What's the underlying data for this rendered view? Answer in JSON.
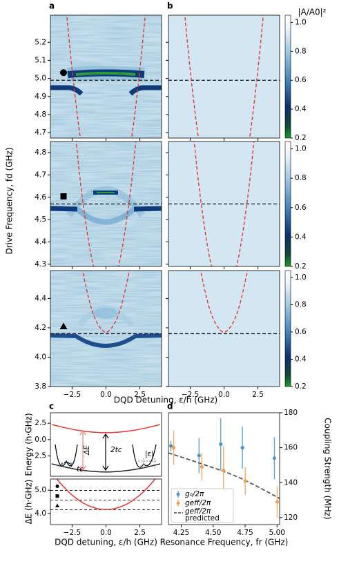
{
  "chart_data": [
    {
      "type": "heatmap",
      "panels": [
        "a",
        "b"
      ],
      "xlabel": "DQD Detuning, ε/h (GHz)",
      "ylabel": "Drive Frequency, fd (GHz)",
      "xlim": [
        -4.1,
        4.1
      ],
      "xticks": [
        {
          "value": -2.5,
          "label": "−2.5"
        },
        {
          "value": 0,
          "label": "0.0"
        },
        2.5
      ],
      "colorbar": {
        "label": "|A/A0|²",
        "lim": [
          0.2,
          1.05
        ],
        "ticks": [
          0.2,
          0.4,
          0.6,
          0.8,
          {
            "value": 1,
            "label": "1.0"
          }
        ]
      },
      "rows": [
        {
          "ylim": [
            4.67,
            5.35
          ],
          "yticks": [
            4.7,
            4.8,
            4.9,
            {
              "value": 5,
              "label": "5.0"
            },
            5.1,
            5.2
          ],
          "reference_line": 4.99
        },
        {
          "ylim": [
            4.29,
            4.85
          ],
          "yticks": [
            4.3,
            4.4,
            4.5,
            4.6,
            4.7,
            4.8
          ],
          "reference_line": 4.57
        },
        {
          "ylim": [
            3.8,
            4.59
          ],
          "yticks": [
            3.8,
            {
              "value": 4,
              "label": "4.0"
            },
            4.2,
            4.4
          ],
          "reference_line": 4.16
        }
      ],
      "model_curve": {
        "x": [
          -3,
          -2.5,
          -2,
          -1.5,
          -1,
          -0.5,
          0,
          0.5,
          1,
          1.5,
          2,
          2.5,
          3
        ],
        "y": [
          5.43,
          5.05,
          4.73,
          4.49,
          4.31,
          4.21,
          4.17,
          4.21,
          4.31,
          4.49,
          4.73,
          5.05,
          5.43
        ]
      },
      "model_color": "#e8352e",
      "reference_color": "#111111"
    },
    {
      "type": "line",
      "panel": "c",
      "ylabel": "Energy (h·GHz)",
      "xlim": [
        -4.1,
        4.1
      ],
      "ylim": [
        -5.6,
        4.1
      ],
      "yticks": [
        {
          "value": -2.5,
          "label": "−2.5"
        },
        {
          "value": 0,
          "label": "0.0"
        },
        2.5
      ],
      "x": [
        -4,
        -3,
        -2,
        -1,
        0,
        1,
        2,
        3,
        4
      ],
      "series": [
        {
          "color": "#e8352e",
          "values": [
            2.3,
            1.8,
            1.4,
            1.15,
            1.05,
            1.15,
            1.4,
            1.8,
            2.3
          ]
        },
        {
          "color": "#222222",
          "values": [
            -3.7,
            -4.2,
            -4.6,
            -4.85,
            -4.95,
            -4.85,
            -4.6,
            -4.2,
            -3.7
          ]
        }
      ],
      "annotations": [
        "ΔE",
        "2tc",
        "tc",
        "|ε|"
      ]
    },
    {
      "type": "line",
      "xlabel": "DQD detuning, ε/h (GHz)",
      "ylabel": "ΔE (h·GHz)",
      "xlim": [
        -4.1,
        4.1
      ],
      "ylim": [
        3.52,
        5.48
      ],
      "xticks": [
        {
          "value": -2.5,
          "label": "−2.5"
        },
        {
          "value": 0,
          "label": "0.0"
        },
        2.5
      ],
      "yticks": [
        {
          "value": 4,
          "label": "4.0"
        },
        {
          "value": 5,
          "label": "5.0"
        }
      ],
      "reference_lines": [
        4.99,
        4.57,
        4.16
      ],
      "x": [
        -4,
        -3.5,
        -3,
        -2.5,
        -2,
        -1.5,
        -1,
        -0.5,
        0,
        0.5,
        1,
        1.5,
        2,
        2.5,
        3,
        3.5,
        4
      ],
      "series": [
        {
          "color": "#e8352e",
          "values": [
            5.77,
            5.39,
            5.07,
            4.79,
            4.57,
            4.39,
            4.27,
            4.19,
            4.17,
            4.19,
            4.27,
            4.39,
            4.57,
            4.79,
            5.07,
            5.39,
            5.77
          ]
        }
      ]
    },
    {
      "type": "errorbar",
      "panel": "d",
      "xlabel": "Resonance Frequency, fr (GHz)",
      "ylabel": "Coupling Strength (MHz)",
      "xlim": [
        4.15,
        5.02
      ],
      "ylim": [
        116,
        180
      ],
      "xticks": [
        4.25,
        {
          "value": 4.5,
          "label": "4.50"
        },
        4.75,
        {
          "value": 5,
          "label": "5.00"
        }
      ],
      "yticks": [
        120,
        140,
        160,
        180
      ],
      "x": [
        4.18,
        4.4,
        4.57,
        4.74,
        4.99
      ],
      "series": [
        {
          "name": "g₀/2π",
          "color": "#4f93c2",
          "values": [
            161,
            155.5,
            162,
            160,
            154
          ],
          "errors": [
            3,
            10,
            15,
            12,
            12
          ]
        },
        {
          "name": "geff/2π",
          "color": "#f5a04a",
          "values": [
            160,
            149,
            147,
            141,
            129
          ],
          "errors": [
            10,
            8,
            14,
            8,
            9
          ]
        }
      ],
      "predicted": {
        "name": [
          "geff/2π",
          "predicted"
        ],
        "color": "#555555",
        "x": [
          4.15,
          4.4,
          4.7,
          5.02
        ],
        "values": [
          157,
          151,
          143,
          131
        ]
      }
    }
  ]
}
